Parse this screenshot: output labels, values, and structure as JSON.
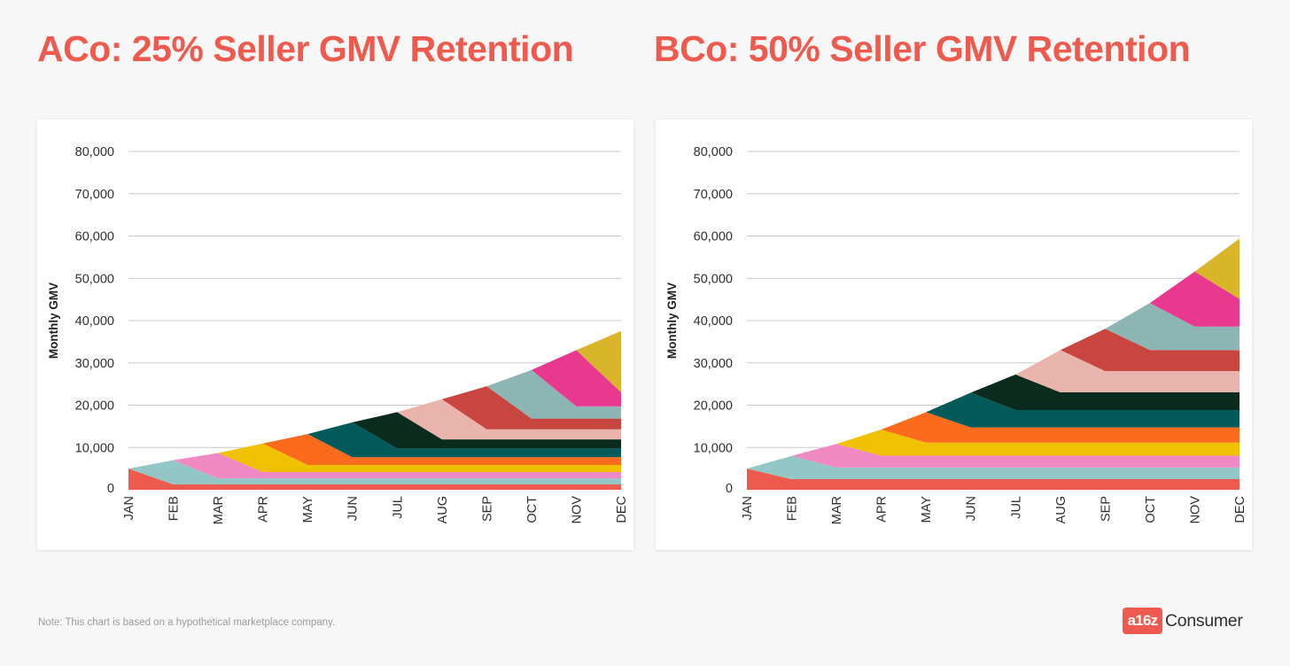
{
  "colors": {
    "title": "#ef5a4f",
    "gridline": "#c9c9c9",
    "axis_text": "#2f2f2f",
    "logo_box": "#ef5a4f",
    "cohorts": [
      "#ef5a4f",
      "#93c6c6",
      "#f088c4",
      "#efc100",
      "#fb6b1d",
      "#035a5a",
      "#0b2b1f",
      "#e8b4ab",
      "#c8463f",
      "#8cb5b4",
      "#e8388f",
      "#d9b52a"
    ]
  },
  "chart_data": [
    {
      "type": "area",
      "title": "ACo: 25% Seller GMV Retention",
      "xlabel": "",
      "ylabel": "Monthly GMV",
      "x": [
        "JAN",
        "FEB",
        "MAR",
        "APR",
        "MAY",
        "JUN",
        "JUL",
        "AUG",
        "SEP",
        "OCT",
        "NOV",
        "DEC"
      ],
      "ylim": [
        0,
        80000
      ],
      "yticks": [
        0,
        10000,
        20000,
        30000,
        40000,
        50000,
        60000,
        70000,
        80000
      ],
      "ytick_labels": [
        "0",
        "10,000",
        "20,000",
        "30,000",
        "40,000",
        "50,000",
        "60,000",
        "70,000",
        "80,000"
      ],
      "grid": true,
      "retention": 0.25,
      "new_seller_gmv": [
        5000,
        5750,
        6000,
        6750,
        7300,
        8250,
        8600,
        9500,
        10200,
        11500,
        13300,
        14500
      ],
      "cohort_colors": [
        "#ef5a4f",
        "#93c6c6",
        "#f088c4",
        "#efc100",
        "#fb6b1d",
        "#035a5a",
        "#0b2b1f",
        "#e8b4ab",
        "#c8463f",
        "#8cb5b4",
        "#e8388f",
        "#d9b52a"
      ]
    },
    {
      "type": "area",
      "title": "BCo: 50% Seller GMV Retention",
      "xlabel": "",
      "ylabel": "Monthly GMV",
      "x": [
        "JAN",
        "FEB",
        "MAR",
        "APR",
        "MAY",
        "JUN",
        "JUL",
        "AUG",
        "SEP",
        "OCT",
        "NOV",
        "DEC"
      ],
      "ylim": [
        0,
        80000
      ],
      "yticks": [
        0,
        10000,
        20000,
        30000,
        40000,
        50000,
        60000,
        70000,
        80000
      ],
      "ytick_labels": [
        "0",
        "10,000",
        "20,000",
        "30,000",
        "40,000",
        "50,000",
        "60,000",
        "70,000",
        "80,000"
      ],
      "grid": true,
      "retention": 0.5,
      "new_seller_gmv": [
        5000,
        5500,
        5600,
        6200,
        7200,
        8200,
        8400,
        10000,
        10000,
        11100,
        13000,
        14300
      ],
      "cohort_colors": [
        "#ef5a4f",
        "#93c6c6",
        "#f088c4",
        "#efc100",
        "#fb6b1d",
        "#035a5a",
        "#0b2b1f",
        "#e8b4ab",
        "#c8463f",
        "#8cb5b4",
        "#e8388f",
        "#d9b52a"
      ]
    }
  ],
  "note": "Note: This chart is based on a hypothetical marketplace company.",
  "logo": {
    "mark": "a16z",
    "word": "Consumer"
  }
}
